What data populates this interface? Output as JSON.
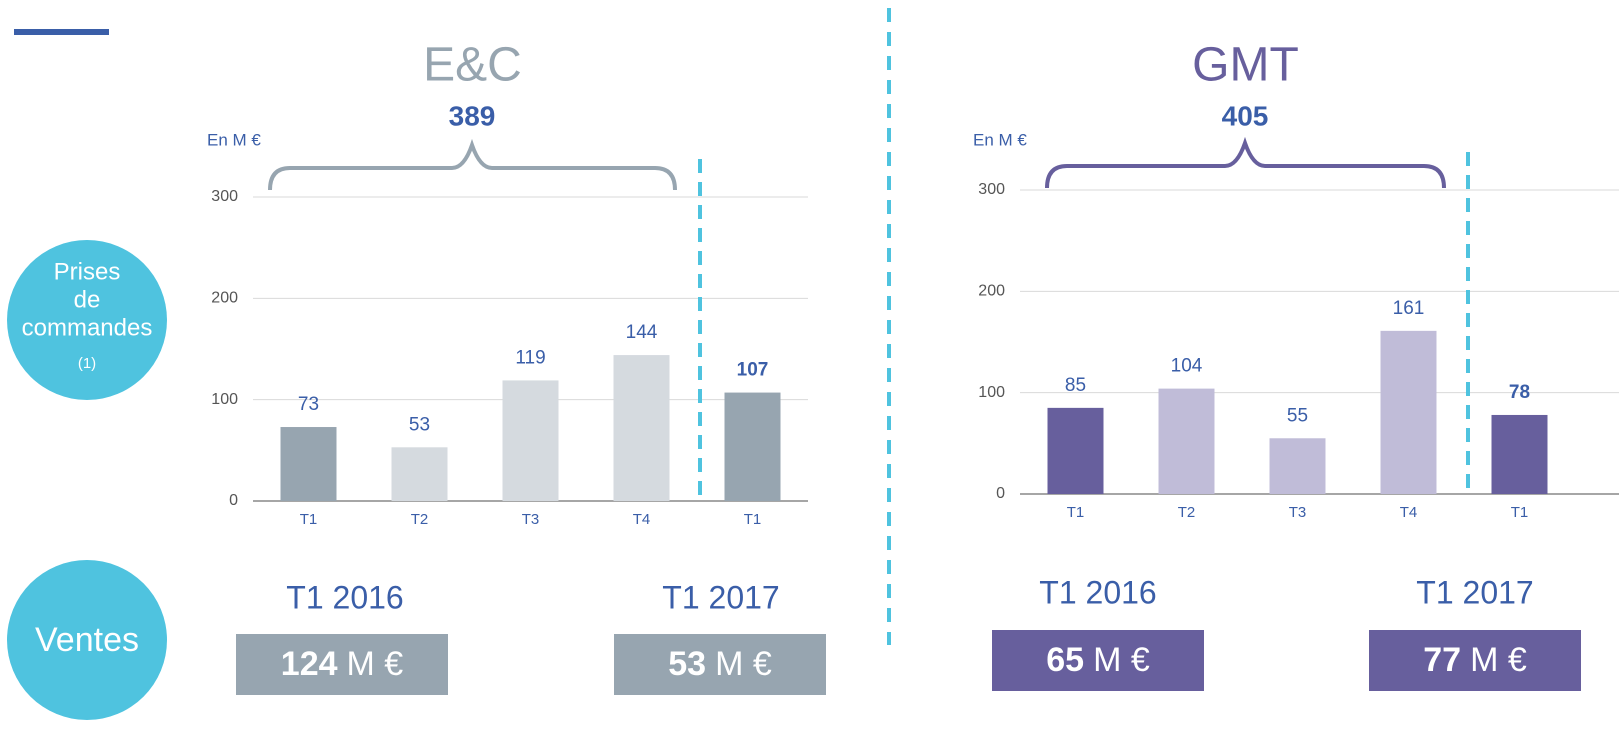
{
  "sidebar": {
    "orders_label": [
      "Prises",
      "de",
      "commandes"
    ],
    "orders_note": "(1)",
    "sales_label": "Ventes"
  },
  "chart_data": [
    {
      "type": "bar",
      "title": "E&C",
      "title_color": "#97a5b0",
      "total": 389,
      "y_label": "En M €",
      "categories": [
        "T1",
        "T2",
        "T3",
        "T4",
        "T1"
      ],
      "values": [
        73,
        53,
        119,
        144,
        107
      ],
      "colors": [
        "#97a5b0",
        "#d5dadf",
        "#d5dadf",
        "#d5dadf",
        "#97a5b0"
      ],
      "ylim": [
        0,
        300
      ],
      "yticks": [
        0,
        100,
        200,
        300
      ],
      "grid": true,
      "periods": [
        "T1 2016",
        "T1 2017"
      ],
      "sales": [
        {
          "value": 124,
          "unit": "M €"
        },
        {
          "value": 53,
          "unit": "M €"
        }
      ]
    },
    {
      "type": "bar",
      "title": "GMT",
      "title_color": "#675f9d",
      "total": 405,
      "y_label": "En M €",
      "categories": [
        "T1",
        "T2",
        "T3",
        "T4",
        "T1"
      ],
      "values": [
        85,
        104,
        55,
        161,
        78
      ],
      "colors": [
        "#675f9d",
        "#c0bcd8",
        "#c0bcd8",
        "#c0bcd8",
        "#675f9d"
      ],
      "ylim": [
        0,
        300
      ],
      "yticks": [
        0,
        100,
        200,
        300
      ],
      "grid": true,
      "periods": [
        "T1 2016",
        "T1 2017"
      ],
      "sales": [
        {
          "value": 65,
          "unit": "M €"
        },
        {
          "value": 77,
          "unit": "M €"
        }
      ]
    }
  ]
}
